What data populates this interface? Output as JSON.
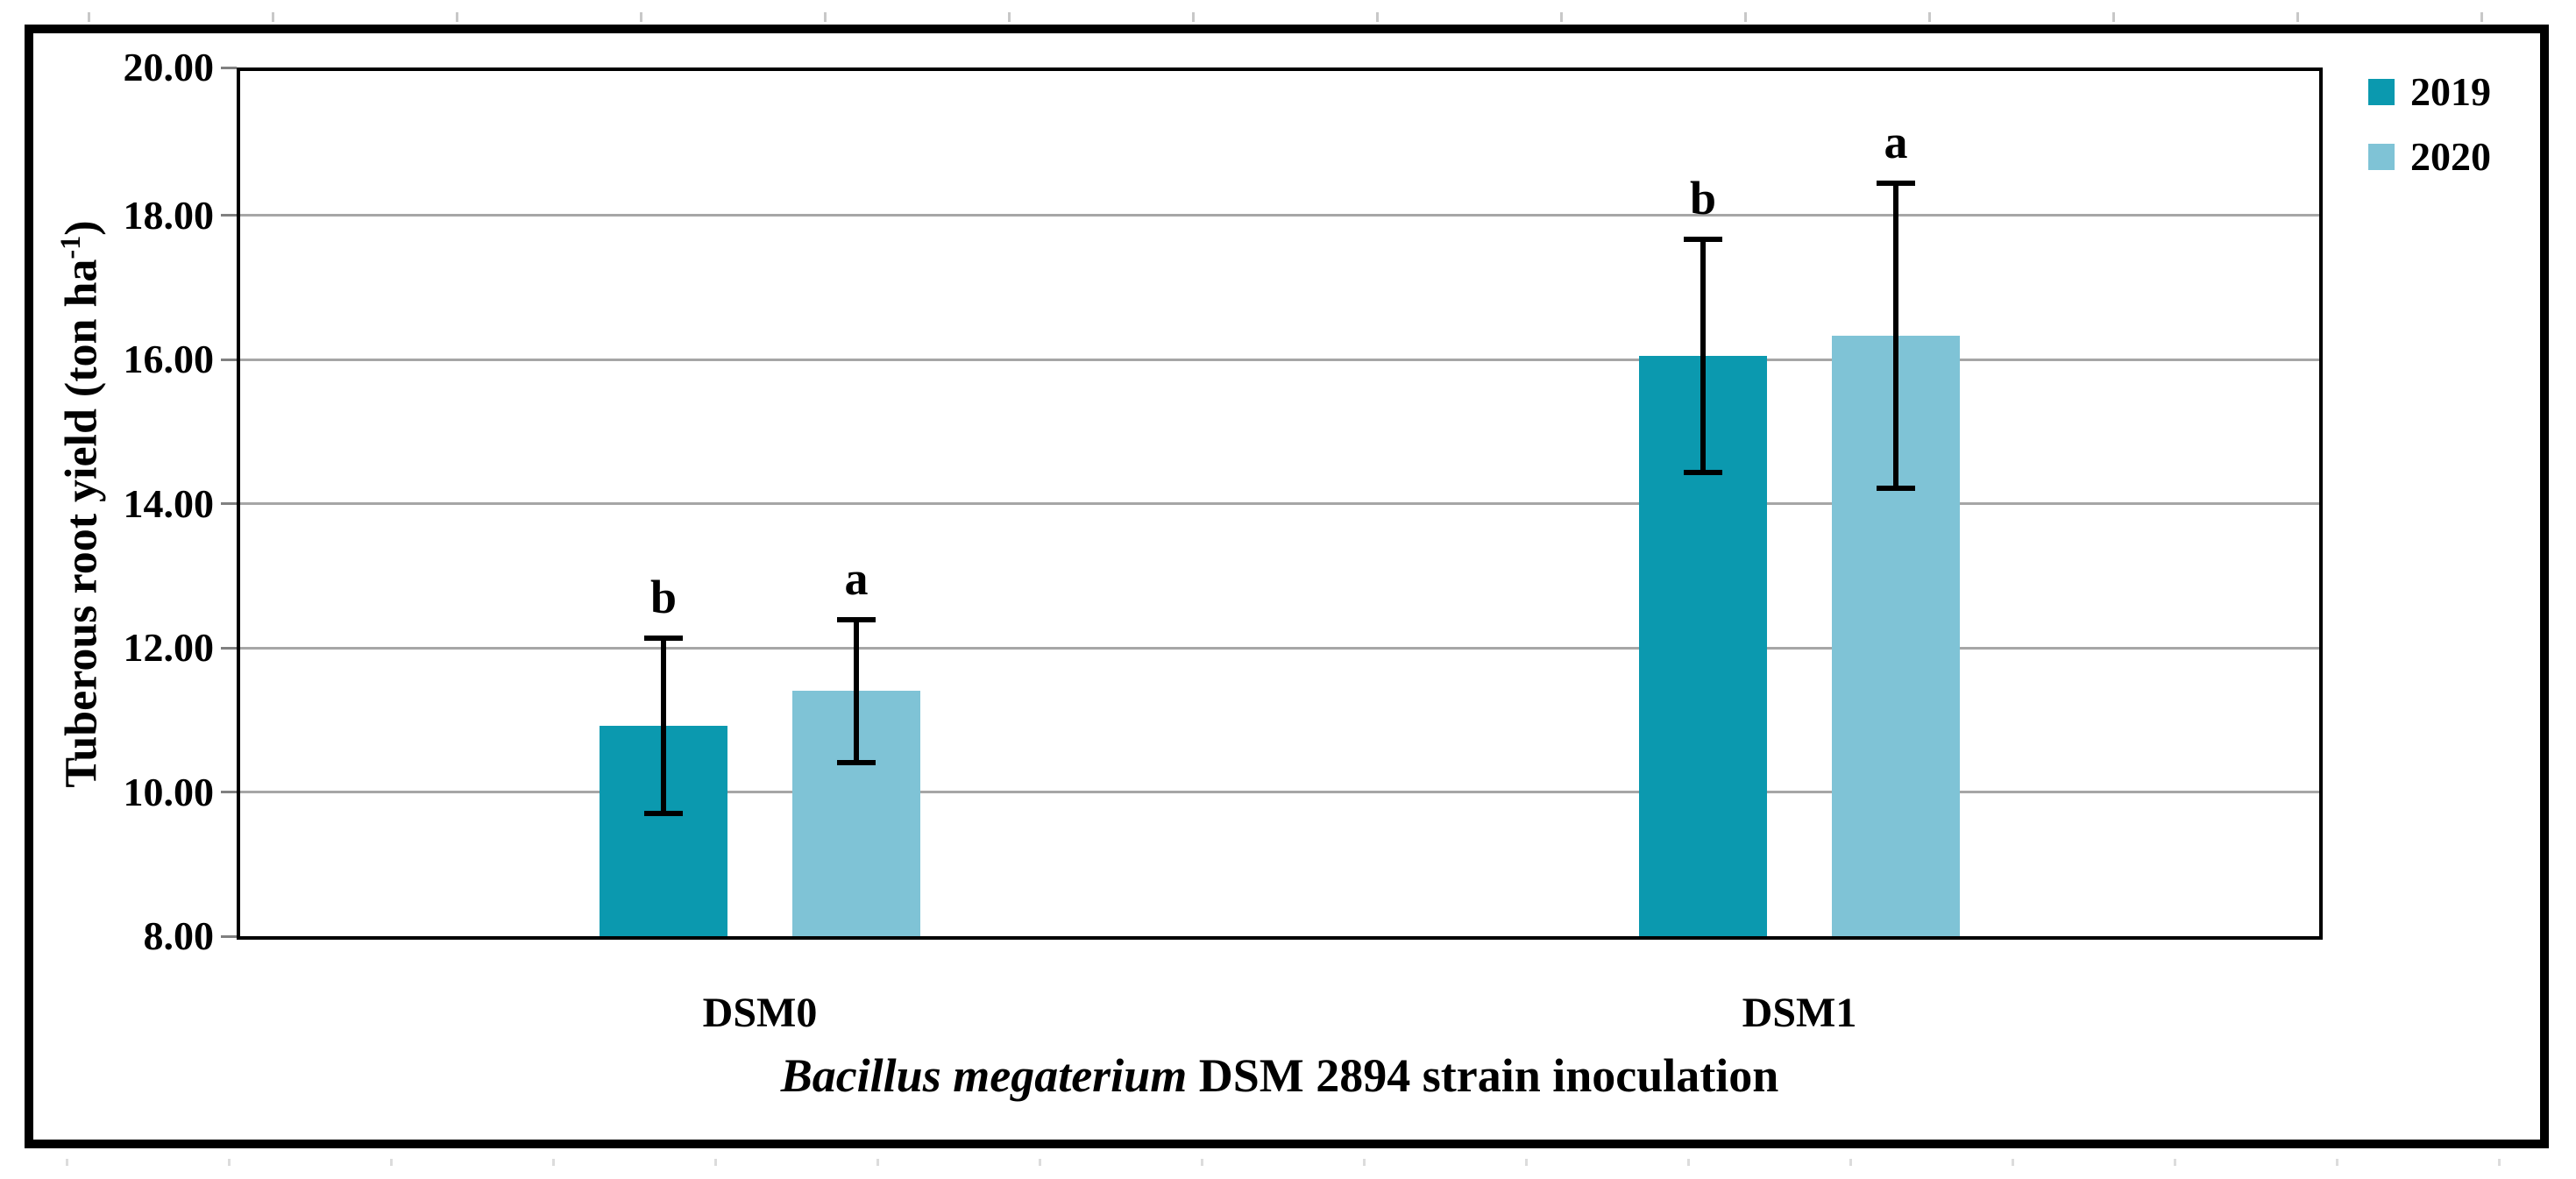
{
  "figure": {
    "background": "#ffffff",
    "border_color": "#000000"
  },
  "chart_data": {
    "type": "bar",
    "title": "",
    "categories": [
      "DSM0",
      "DSM1"
    ],
    "series": [
      {
        "name": "2019",
        "color": "#0b99af",
        "values": [
          10.92,
          16.05
        ],
        "errors": [
          1.25,
          1.65
        ],
        "sig_letters": [
          "b",
          "b"
        ]
      },
      {
        "name": "2020",
        "color": "#7fc3d6",
        "values": [
          11.4,
          16.33
        ],
        "errors": [
          1.03,
          2.15
        ],
        "sig_letters": [
          "a",
          "a"
        ]
      }
    ],
    "xlabel_italic": "Bacillus megaterium",
    "xlabel_regular": " DSM 2894 strain inoculation",
    "ylabel_main": "Tuberous root yield (ton ha",
    "ylabel_sup": "-1",
    "ylabel_close": ")",
    "ylim": [
      8,
      20
    ],
    "yticks": [
      20,
      18,
      16,
      14,
      12,
      10,
      8
    ],
    "ytick_decimals": 2,
    "grid": true,
    "gridline_color": "#a6a6a6",
    "axis_color": "#000000",
    "error_bar_color": "#000000",
    "legend_position": "top-right",
    "legend_entries": [
      "2019",
      "2020"
    ]
  }
}
